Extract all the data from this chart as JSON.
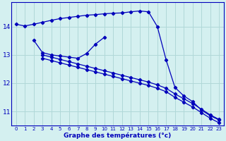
{
  "xlabel": "Graphe des températures (°c)",
  "background_color": "#d4f0f0",
  "grid_color": "#b0d8d8",
  "line_color": "#0000bb",
  "xlim": [
    -0.5,
    23.5
  ],
  "ylim": [
    10.5,
    14.85
  ],
  "xticks": [
    0,
    1,
    2,
    3,
    4,
    5,
    6,
    7,
    8,
    9,
    10,
    11,
    12,
    13,
    14,
    15,
    16,
    17,
    18,
    19,
    20,
    21,
    22,
    23
  ],
  "yticks": [
    11,
    12,
    13,
    14
  ],
  "line1_x": [
    0,
    1,
    2,
    3,
    4,
    5,
    6,
    7,
    8,
    9,
    10,
    11,
    12,
    13,
    14,
    15,
    16,
    17,
    18,
    19,
    20,
    21,
    22,
    23
  ],
  "line1_y": [
    14.08,
    14.02,
    14.08,
    14.15,
    14.22,
    14.28,
    14.32,
    14.36,
    14.4,
    14.42,
    14.45,
    14.47,
    14.48,
    14.52,
    14.55,
    14.52,
    14.0,
    12.82,
    11.85,
    11.55,
    11.35,
    11.05,
    10.85,
    10.7
  ],
  "line2_x": [
    2,
    3,
    4,
    5,
    6,
    7,
    8,
    9,
    10
  ],
  "line2_y": [
    13.52,
    13.08,
    13.0,
    12.96,
    12.92,
    12.88,
    13.05,
    13.38,
    13.62
  ],
  "line3_x": [
    3,
    4,
    5,
    6,
    7,
    8,
    9,
    10,
    11,
    12,
    13,
    14,
    15,
    16,
    17,
    18,
    19,
    20,
    21,
    22,
    23
  ],
  "line3_y": [
    13.0,
    12.92,
    12.84,
    12.76,
    12.68,
    12.6,
    12.52,
    12.44,
    12.36,
    12.28,
    12.2,
    12.12,
    12.04,
    11.94,
    11.82,
    11.62,
    11.45,
    11.28,
    11.08,
    10.88,
    10.72
  ],
  "line4_x": [
    3,
    4,
    5,
    6,
    7,
    8,
    9,
    10,
    11,
    12,
    13,
    14,
    15,
    16,
    17,
    18,
    19,
    20,
    21,
    22,
    23
  ],
  "line4_y": [
    12.88,
    12.8,
    12.72,
    12.64,
    12.56,
    12.48,
    12.4,
    12.32,
    12.24,
    12.16,
    12.08,
    12.0,
    11.92,
    11.82,
    11.7,
    11.5,
    11.33,
    11.16,
    10.96,
    10.76,
    10.6
  ]
}
